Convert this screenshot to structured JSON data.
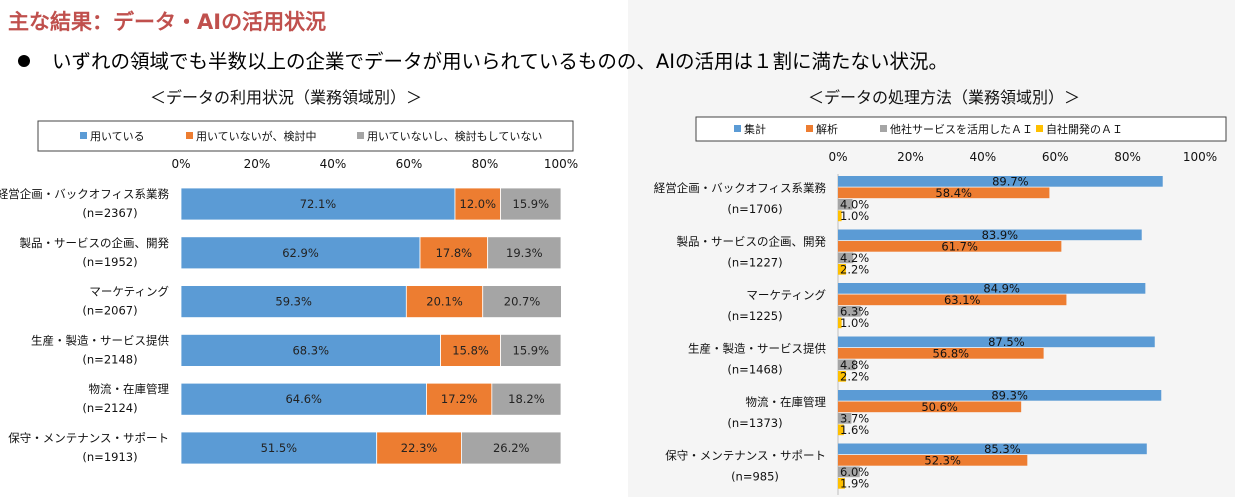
{
  "title": "主な結果：データ・AIの活用状況",
  "bullet": "いずれの領域でも半数以上の企業でデータが用いられているものの、AIの活用は１割に満たない状況。",
  "colors": {
    "blue": "#5b9bd5",
    "orange": "#ed7d31",
    "gray": "#a5a5a5",
    "yellow": "#ffc000",
    "title": "#c0504d"
  },
  "chart_data": [
    {
      "type": "bar",
      "orientation": "horizontal",
      "stacked": true,
      "subtitle": "＜データの利用状況（業務領域別）＞",
      "categories": [
        {
          "name": "経営企画・バックオフィス系業務",
          "n": "(n=2367)"
        },
        {
          "name": "製品・サービスの企画、開発",
          "n": "(n=1952)"
        },
        {
          "name": "マーケティング",
          "n": "(n=2067)"
        },
        {
          "name": "生産・製造・サービス提供",
          "n": "(n=2148)"
        },
        {
          "name": "物流・在庫管理",
          "n": "(n=2124)"
        },
        {
          "name": "保守・メンテナンス・サポート",
          "n": "(n=1913)"
        }
      ],
      "series": [
        {
          "name": "用いている",
          "color": "#5b9bd5",
          "values": [
            72.1,
            62.9,
            59.3,
            68.3,
            64.6,
            51.5
          ],
          "labels": [
            "72.1%",
            "62.9%",
            "59.3%",
            "68.3%",
            "64.6%",
            "51.5%"
          ]
        },
        {
          "name": "用いていないが、検討中",
          "color": "#ed7d31",
          "values": [
            12.0,
            17.8,
            20.1,
            15.8,
            17.2,
            22.3
          ],
          "labels": [
            "12.0%",
            "17.8%",
            "20.1%",
            "15.8%",
            "17.2%",
            "22.3%"
          ]
        },
        {
          "name": "用いていないし、検討もしていない",
          "color": "#a5a5a5",
          "values": [
            15.9,
            19.3,
            20.7,
            15.9,
            18.2,
            26.2
          ],
          "labels": [
            "15.9%",
            "19.3%",
            "20.7%",
            "15.9%",
            "18.2%",
            "26.2%"
          ]
        }
      ],
      "xlim": [
        0,
        100
      ],
      "ticks": [
        "0%",
        "20%",
        "40%",
        "60%",
        "80%",
        "100%"
      ],
      "legend": "top"
    },
    {
      "type": "bar",
      "orientation": "horizontal",
      "stacked": false,
      "subtitle": "＜データの処理方法（業務領域別）＞",
      "categories": [
        {
          "name": "経営企画・バックオフィス系業務",
          "n": "(n=1706)"
        },
        {
          "name": "製品・サービスの企画、開発",
          "n": "(n=1227)"
        },
        {
          "name": "マーケティング",
          "n": "(n=1225)"
        },
        {
          "name": "生産・製造・サービス提供",
          "n": "(n=1468)"
        },
        {
          "name": "物流・在庫管理",
          "n": "(n=1373)"
        },
        {
          "name": "保守・メンテナンス・サポート",
          "n": "(n=985)"
        }
      ],
      "series": [
        {
          "name": "集計",
          "color": "#5b9bd5",
          "values": [
            89.7,
            83.9,
            84.9,
            87.5,
            89.3,
            85.3
          ],
          "labels": [
            "89.7%",
            "83.9%",
            "84.9%",
            "87.5%",
            "89.3%",
            "85.3%"
          ]
        },
        {
          "name": "解析",
          "color": "#ed7d31",
          "values": [
            58.4,
            61.7,
            63.1,
            56.8,
            50.6,
            52.3
          ],
          "labels": [
            "58.4%",
            "61.7%",
            "63.1%",
            "56.8%",
            "50.6%",
            "52.3%"
          ]
        },
        {
          "name": "他社サービスを活用したＡＩ",
          "color": "#a5a5a5",
          "values": [
            4.0,
            4.2,
            6.3,
            4.8,
            3.7,
            6.0
          ],
          "labels": [
            "4.0%",
            "4.2%",
            "6.3%",
            "4.8%",
            "3.7%",
            "6.0%"
          ]
        },
        {
          "name": "自社開発のＡＩ",
          "color": "#ffc000",
          "values": [
            1.0,
            2.2,
            1.0,
            2.2,
            1.6,
            1.9
          ],
          "labels": [
            "1.0%",
            "2.2%",
            "1.0%",
            "2.2%",
            "1.6%",
            "1.9%"
          ]
        }
      ],
      "xlim": [
        0,
        100
      ],
      "ticks": [
        "0%",
        "20%",
        "40%",
        "60%",
        "80%",
        "100%"
      ],
      "legend": "top"
    }
  ]
}
